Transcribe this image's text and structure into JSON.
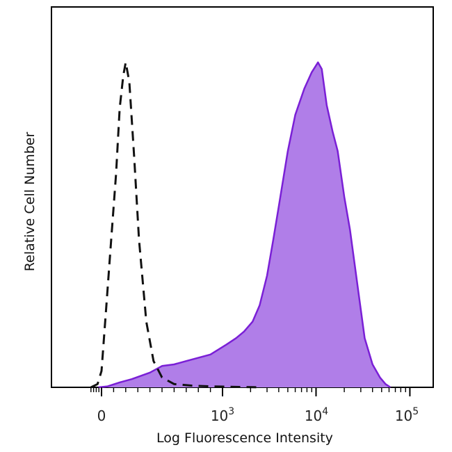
{
  "chart_data": {
    "type": "area",
    "xlabel": "Log Fluorescence Intensity",
    "ylabel": "Relative Cell Number",
    "x_scale": "biexponential",
    "x_ticks": [
      {
        "value": 0,
        "label": "0"
      },
      {
        "value": 1000,
        "base": "10",
        "exp": "3"
      },
      {
        "value": 10000,
        "base": "10",
        "exp": "4"
      },
      {
        "value": 100000,
        "base": "10",
        "exp": "5"
      }
    ],
    "ylim": [
      0,
      100
    ],
    "grid": false,
    "legend": "none",
    "series": [
      {
        "style": "dashed-outline",
        "color": "#111111",
        "points": [
          [
            -80,
            0
          ],
          [
            -30,
            1
          ],
          [
            0,
            5
          ],
          [
            40,
            25
          ],
          [
            80,
            45
          ],
          [
            120,
            65
          ],
          [
            150,
            85
          ],
          [
            180,
            95
          ],
          [
            200,
            99
          ],
          [
            230,
            93
          ],
          [
            270,
            70
          ],
          [
            310,
            45
          ],
          [
            370,
            20
          ],
          [
            430,
            8
          ],
          [
            500,
            3
          ],
          [
            600,
            1
          ],
          [
            750,
            0.5
          ],
          [
            900,
            0.3
          ],
          [
            1100,
            0.2
          ],
          [
            1500,
            0.1
          ],
          [
            2500,
            0
          ]
        ]
      },
      {
        "style": "filled",
        "color": "#7a1fd6",
        "fill": "#b07ee8",
        "points": [
          [
            -25,
            0
          ],
          [
            50,
            0.3
          ],
          [
            150,
            1.5
          ],
          [
            250,
            2.5
          ],
          [
            400,
            4.5
          ],
          [
            500,
            6.5
          ],
          [
            600,
            7
          ],
          [
            700,
            8
          ],
          [
            900,
            10
          ],
          [
            1100,
            13
          ],
          [
            1400,
            15
          ],
          [
            1700,
            17
          ],
          [
            2100,
            20
          ],
          [
            2500,
            25
          ],
          [
            3000,
            34
          ],
          [
            3500,
            45
          ],
          [
            4000,
            55
          ],
          [
            5000,
            72
          ],
          [
            6000,
            83
          ],
          [
            7500,
            91
          ],
          [
            9000,
            96
          ],
          [
            10500,
            99
          ],
          [
            11500,
            97
          ],
          [
            13000,
            86
          ],
          [
            15000,
            78
          ],
          [
            17000,
            72
          ],
          [
            20000,
            58
          ],
          [
            23000,
            48
          ],
          [
            28000,
            30
          ],
          [
            33000,
            15
          ],
          [
            40000,
            7
          ],
          [
            48000,
            3
          ],
          [
            55000,
            1
          ],
          [
            62000,
            0
          ]
        ]
      }
    ]
  }
}
